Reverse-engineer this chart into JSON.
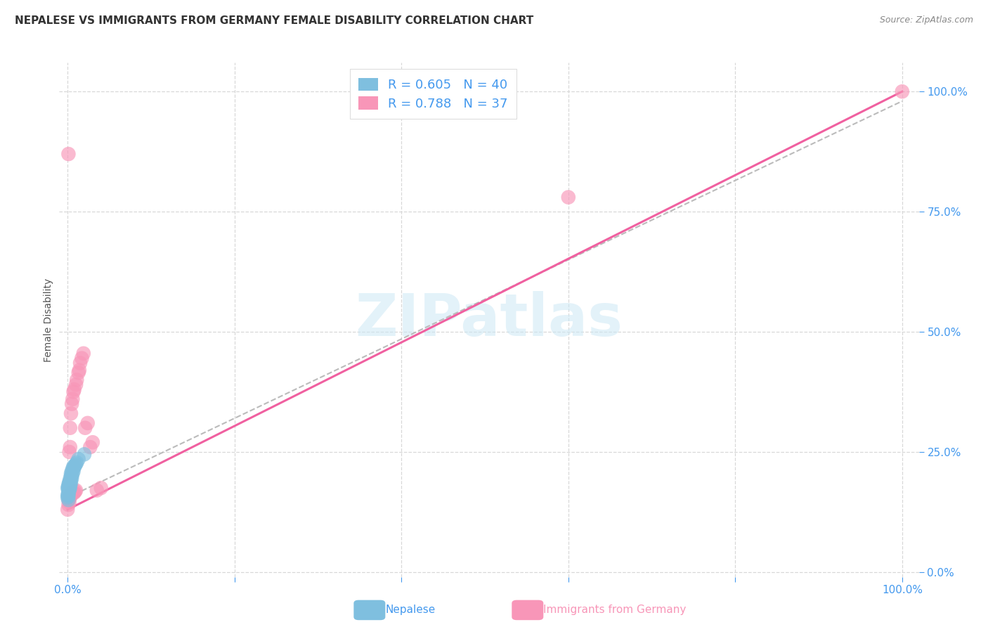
{
  "title": "NEPALESE VS IMMIGRANTS FROM GERMANY FEMALE DISABILITY CORRELATION CHART",
  "source": "Source: ZipAtlas.com",
  "ylabel": "Female Disability",
  "ytick_labels": [
    "0.0%",
    "25.0%",
    "50.0%",
    "75.0%",
    "100.0%"
  ],
  "ytick_values": [
    0.0,
    0.25,
    0.5,
    0.75,
    1.0
  ],
  "xtick_values": [
    0.0,
    0.2,
    0.4,
    0.6,
    0.8,
    1.0
  ],
  "legend_r1": "R = 0.605",
  "legend_n1": "N = 40",
  "legend_r2": "R = 0.788",
  "legend_n2": "N = 37",
  "color_nepalese": "#7fbfdf",
  "color_germany": "#f896b8",
  "color_nepalese_line": "#bbbbbb",
  "color_germany_line": "#f060a0",
  "background": "#ffffff",
  "nepalese_x": [
    0.0,
    0.0,
    0.0,
    0.001,
    0.001,
    0.001,
    0.001,
    0.001,
    0.001,
    0.001,
    0.001,
    0.001,
    0.002,
    0.002,
    0.002,
    0.002,
    0.002,
    0.002,
    0.003,
    0.003,
    0.003,
    0.003,
    0.003,
    0.004,
    0.004,
    0.004,
    0.004,
    0.005,
    0.005,
    0.005,
    0.006,
    0.006,
    0.007,
    0.007,
    0.008,
    0.009,
    0.01,
    0.011,
    0.013,
    0.02
  ],
  "nepalese_y": [
    0.155,
    0.16,
    0.175,
    0.15,
    0.158,
    0.162,
    0.165,
    0.168,
    0.172,
    0.175,
    0.178,
    0.182,
    0.17,
    0.175,
    0.18,
    0.182,
    0.185,
    0.188,
    0.175,
    0.18,
    0.185,
    0.19,
    0.195,
    0.185,
    0.19,
    0.2,
    0.205,
    0.195,
    0.2,
    0.21,
    0.205,
    0.215,
    0.21,
    0.22,
    0.218,
    0.222,
    0.225,
    0.228,
    0.235,
    0.245
  ],
  "germany_x": [
    0.0,
    0.001,
    0.001,
    0.001,
    0.002,
    0.002,
    0.002,
    0.003,
    0.003,
    0.003,
    0.004,
    0.004,
    0.005,
    0.005,
    0.006,
    0.006,
    0.007,
    0.007,
    0.008,
    0.008,
    0.009,
    0.01,
    0.01,
    0.011,
    0.013,
    0.014,
    0.015,
    0.017,
    0.019,
    0.021,
    0.024,
    0.027,
    0.03,
    0.035,
    0.04,
    0.6,
    1.0
  ],
  "germany_y": [
    0.13,
    0.14,
    0.15,
    0.87,
    0.145,
    0.155,
    0.25,
    0.155,
    0.26,
    0.3,
    0.16,
    0.33,
    0.165,
    0.35,
    0.165,
    0.36,
    0.165,
    0.375,
    0.165,
    0.38,
    0.168,
    0.17,
    0.39,
    0.4,
    0.415,
    0.42,
    0.435,
    0.445,
    0.455,
    0.3,
    0.31,
    0.26,
    0.27,
    0.17,
    0.175,
    0.78,
    1.0
  ],
  "nepalese_line_x": [
    0.0,
    1.0
  ],
  "nepalese_line_y": [
    0.155,
    0.98
  ],
  "germany_line_x": [
    0.0,
    1.0
  ],
  "germany_line_y": [
    0.13,
    1.0
  ]
}
